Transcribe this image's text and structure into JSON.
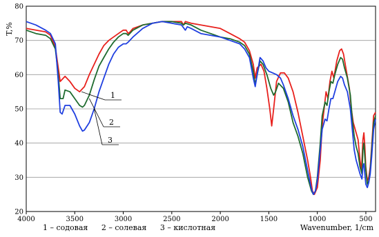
{
  "chart_data": {
    "type": "line",
    "xlabel": "Wavenumber, 1/cm",
    "ylabel": "T,%",
    "xlim": [
      4000,
      400
    ],
    "ylim": [
      20,
      80
    ],
    "x_ticks": [
      4000,
      3500,
      3000,
      2500,
      2000,
      1500,
      1000,
      500
    ],
    "y_ticks": [
      20,
      30,
      40,
      50,
      60,
      70,
      80
    ],
    "grid": true,
    "legend_entries": [
      "1 – содовая",
      "2 – солевая",
      "3 – кислотная"
    ],
    "curve_labels": [
      "1",
      "2",
      "3"
    ],
    "series": [
      {
        "name": "1 – содовая",
        "color": "#e8201c",
        "points": [
          [
            4000,
            73.5
          ],
          [
            3900,
            73
          ],
          [
            3800,
            72.5
          ],
          [
            3750,
            71.5
          ],
          [
            3700,
            68
          ],
          [
            3670,
            62
          ],
          [
            3650,
            58
          ],
          [
            3600,
            59.5
          ],
          [
            3550,
            58
          ],
          [
            3500,
            56
          ],
          [
            3450,
            55
          ],
          [
            3400,
            56.5
          ],
          [
            3350,
            60
          ],
          [
            3300,
            63
          ],
          [
            3250,
            66
          ],
          [
            3200,
            68.5
          ],
          [
            3150,
            70
          ],
          [
            3100,
            71
          ],
          [
            3050,
            72
          ],
          [
            3000,
            73
          ],
          [
            2970,
            73
          ],
          [
            2950,
            72
          ],
          [
            2930,
            72.5
          ],
          [
            2900,
            73.5
          ],
          [
            2800,
            74.5
          ],
          [
            2700,
            75
          ],
          [
            2600,
            75.5
          ],
          [
            2500,
            75.5
          ],
          [
            2400,
            75.5
          ],
          [
            2380,
            74.5
          ],
          [
            2360,
            75.5
          ],
          [
            2300,
            75
          ],
          [
            2200,
            74.5
          ],
          [
            2100,
            74
          ],
          [
            2000,
            73.5
          ],
          [
            1900,
            72
          ],
          [
            1800,
            70.5
          ],
          [
            1750,
            69.5
          ],
          [
            1700,
            67
          ],
          [
            1660,
            63
          ],
          [
            1640,
            59
          ],
          [
            1620,
            62
          ],
          [
            1580,
            63
          ],
          [
            1550,
            61
          ],
          [
            1520,
            56
          ],
          [
            1490,
            50
          ],
          [
            1470,
            45
          ],
          [
            1450,
            50
          ],
          [
            1420,
            58
          ],
          [
            1380,
            60.5
          ],
          [
            1340,
            60.5
          ],
          [
            1300,
            59
          ],
          [
            1250,
            55
          ],
          [
            1200,
            49
          ],
          [
            1150,
            42
          ],
          [
            1100,
            35
          ],
          [
            1070,
            30
          ],
          [
            1050,
            26
          ],
          [
            1030,
            25
          ],
          [
            1000,
            27
          ],
          [
            970,
            35
          ],
          [
            950,
            45
          ],
          [
            930,
            50
          ],
          [
            910,
            55
          ],
          [
            890,
            53
          ],
          [
            870,
            58
          ],
          [
            850,
            61
          ],
          [
            830,
            59
          ],
          [
            800,
            64
          ],
          [
            770,
            67
          ],
          [
            750,
            67.5
          ],
          [
            730,
            66
          ],
          [
            700,
            61
          ],
          [
            670,
            56
          ],
          [
            650,
            50
          ],
          [
            630,
            46
          ],
          [
            600,
            43
          ],
          [
            580,
            41
          ],
          [
            560,
            35
          ],
          [
            545,
            32
          ],
          [
            530,
            41
          ],
          [
            520,
            43
          ],
          [
            510,
            39
          ],
          [
            500,
            33
          ],
          [
            485,
            29
          ],
          [
            470,
            30
          ],
          [
            455,
            33
          ],
          [
            440,
            39
          ],
          [
            420,
            48
          ],
          [
            400,
            49
          ]
        ]
      },
      {
        "name": "2 – солевая",
        "color": "#1e6b2e",
        "points": [
          [
            4000,
            73
          ],
          [
            3900,
            72
          ],
          [
            3800,
            71.5
          ],
          [
            3750,
            70.5
          ],
          [
            3700,
            67.5
          ],
          [
            3670,
            60
          ],
          [
            3650,
            53
          ],
          [
            3620,
            53
          ],
          [
            3600,
            55.5
          ],
          [
            3550,
            55
          ],
          [
            3500,
            53
          ],
          [
            3450,
            51
          ],
          [
            3420,
            50.5
          ],
          [
            3400,
            51
          ],
          [
            3350,
            54
          ],
          [
            3300,
            58.5
          ],
          [
            3250,
            62.5
          ],
          [
            3200,
            65
          ],
          [
            3150,
            67.5
          ],
          [
            3100,
            69.5
          ],
          [
            3050,
            71
          ],
          [
            3000,
            72
          ],
          [
            2970,
            72
          ],
          [
            2950,
            71.5
          ],
          [
            2900,
            73
          ],
          [
            2800,
            74.5
          ],
          [
            2700,
            75
          ],
          [
            2600,
            75.5
          ],
          [
            2500,
            75.5
          ],
          [
            2400,
            75
          ],
          [
            2380,
            74.5
          ],
          [
            2360,
            75
          ],
          [
            2300,
            74.5
          ],
          [
            2200,
            73
          ],
          [
            2100,
            72
          ],
          [
            2000,
            71
          ],
          [
            1900,
            70.5
          ],
          [
            1800,
            69.5
          ],
          [
            1750,
            68.5
          ],
          [
            1700,
            66
          ],
          [
            1660,
            61
          ],
          [
            1640,
            57
          ],
          [
            1620,
            60
          ],
          [
            1590,
            64
          ],
          [
            1560,
            63
          ],
          [
            1520,
            60
          ],
          [
            1480,
            56
          ],
          [
            1450,
            54
          ],
          [
            1430,
            55
          ],
          [
            1400,
            57.5
          ],
          [
            1350,
            56
          ],
          [
            1300,
            52
          ],
          [
            1250,
            46
          ],
          [
            1200,
            42
          ],
          [
            1150,
            37
          ],
          [
            1100,
            30
          ],
          [
            1060,
            26
          ],
          [
            1040,
            25
          ],
          [
            1020,
            26
          ],
          [
            1000,
            30
          ],
          [
            970,
            40
          ],
          [
            950,
            48
          ],
          [
            920,
            52
          ],
          [
            900,
            51
          ],
          [
            880,
            55
          ],
          [
            860,
            58
          ],
          [
            840,
            57.5
          ],
          [
            820,
            60
          ],
          [
            790,
            63
          ],
          [
            760,
            65
          ],
          [
            740,
            64.5
          ],
          [
            720,
            62
          ],
          [
            690,
            59
          ],
          [
            660,
            54
          ],
          [
            640,
            47
          ],
          [
            620,
            42
          ],
          [
            600,
            39
          ],
          [
            580,
            37
          ],
          [
            560,
            33
          ],
          [
            540,
            31
          ],
          [
            530,
            38
          ],
          [
            520,
            40
          ],
          [
            510,
            36
          ],
          [
            500,
            32
          ],
          [
            485,
            28
          ],
          [
            470,
            29
          ],
          [
            455,
            32
          ],
          [
            440,
            38
          ],
          [
            420,
            46
          ],
          [
            400,
            48
          ]
        ]
      },
      {
        "name": "3 – кислотная",
        "color": "#1f3fe0",
        "points": [
          [
            4000,
            75.5
          ],
          [
            3900,
            74.5
          ],
          [
            3800,
            73
          ],
          [
            3750,
            72
          ],
          [
            3700,
            69
          ],
          [
            3670,
            58
          ],
          [
            3650,
            49
          ],
          [
            3630,
            48.5
          ],
          [
            3600,
            51
          ],
          [
            3550,
            51
          ],
          [
            3500,
            48.5
          ],
          [
            3450,
            45
          ],
          [
            3420,
            43.5
          ],
          [
            3400,
            43.8
          ],
          [
            3350,
            46
          ],
          [
            3300,
            50
          ],
          [
            3250,
            55
          ],
          [
            3200,
            59
          ],
          [
            3150,
            63
          ],
          [
            3100,
            66
          ],
          [
            3050,
            68
          ],
          [
            3000,
            69
          ],
          [
            2970,
            69
          ],
          [
            2950,
            69.5
          ],
          [
            2900,
            71
          ],
          [
            2800,
            73.5
          ],
          [
            2700,
            75
          ],
          [
            2600,
            75.5
          ],
          [
            2500,
            75
          ],
          [
            2400,
            74.5
          ],
          [
            2360,
            73
          ],
          [
            2340,
            74
          ],
          [
            2300,
            73.5
          ],
          [
            2200,
            72
          ],
          [
            2100,
            71.5
          ],
          [
            2000,
            71
          ],
          [
            1900,
            70
          ],
          [
            1800,
            69
          ],
          [
            1750,
            67.5
          ],
          [
            1700,
            65
          ],
          [
            1660,
            59
          ],
          [
            1640,
            56.5
          ],
          [
            1620,
            60
          ],
          [
            1590,
            65
          ],
          [
            1560,
            64
          ],
          [
            1530,
            62
          ],
          [
            1500,
            61
          ],
          [
            1460,
            60.5
          ],
          [
            1420,
            60
          ],
          [
            1380,
            59
          ],
          [
            1350,
            57
          ],
          [
            1300,
            53
          ],
          [
            1250,
            48
          ],
          [
            1200,
            44
          ],
          [
            1150,
            39
          ],
          [
            1100,
            32
          ],
          [
            1060,
            26.5
          ],
          [
            1040,
            25
          ],
          [
            1020,
            26
          ],
          [
            1000,
            29
          ],
          [
            970,
            38
          ],
          [
            950,
            44
          ],
          [
            920,
            47
          ],
          [
            900,
            46.5
          ],
          [
            880,
            50
          ],
          [
            860,
            53
          ],
          [
            840,
            53
          ],
          [
            820,
            55
          ],
          [
            790,
            58
          ],
          [
            760,
            59.5
          ],
          [
            740,
            59
          ],
          [
            720,
            57
          ],
          [
            690,
            55
          ],
          [
            660,
            50
          ],
          [
            640,
            44
          ],
          [
            620,
            38
          ],
          [
            600,
            35
          ],
          [
            580,
            33
          ],
          [
            560,
            31
          ],
          [
            540,
            29.5
          ],
          [
            530,
            33
          ],
          [
            520,
            34
          ],
          [
            510,
            31
          ],
          [
            500,
            28
          ],
          [
            485,
            27
          ],
          [
            470,
            28.5
          ],
          [
            455,
            31
          ],
          [
            440,
            36
          ],
          [
            420,
            44
          ],
          [
            400,
            47
          ]
        ]
      }
    ]
  }
}
